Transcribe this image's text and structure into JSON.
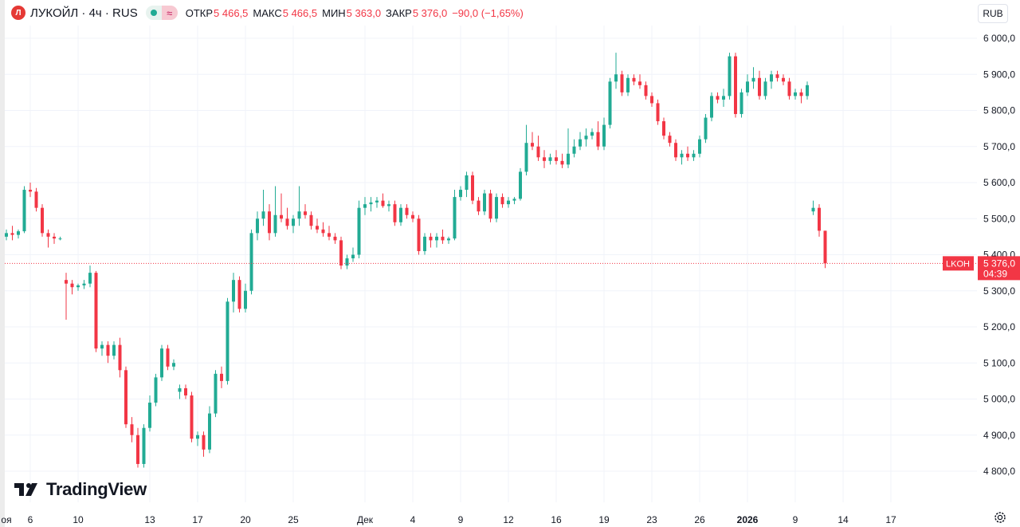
{
  "legend": {
    "symbol_initial": "Л",
    "title": "ЛУКОЙЛ · 4ч · RUS",
    "open_label": "ОТКР",
    "open_value": "5 466,5",
    "high_label": "МАКС",
    "high_value": "5 466,5",
    "low_label": "МИН",
    "low_value": "5 363,0",
    "close_label": "ЗАКР",
    "close_value": "5 376,0",
    "change": "−90,0 (−1,65%)"
  },
  "currency": "RUB",
  "branding": "TradingView",
  "price_tag": {
    "symbol": "LKOH",
    "price": "5 376,0",
    "countdown": "04:39"
  },
  "colors": {
    "up": "#22ab94",
    "down": "#f23645",
    "grid": "#f0f3fa",
    "text": "#131722"
  },
  "chart_data": {
    "type": "candlestick",
    "title": "ЛУКОЙЛ · 4ч · RUS",
    "ylim": [
      4770,
      6040
    ],
    "price_ticks": [
      {
        "value": 6000,
        "label": "6 000,0"
      },
      {
        "value": 5900,
        "label": "5 900,0"
      },
      {
        "value": 5800,
        "label": "5 800,0"
      },
      {
        "value": 5700,
        "label": "5 700,0"
      },
      {
        "value": 5600,
        "label": "5 600,0"
      },
      {
        "value": 5500,
        "label": "5 500,0"
      },
      {
        "value": 5400,
        "label": "5 400,0"
      },
      {
        "value": 5300,
        "label": "5 300,0"
      },
      {
        "value": 5200,
        "label": "5 200,0"
      },
      {
        "value": 5100,
        "label": "5 100,0"
      },
      {
        "value": 5000,
        "label": "5 000,0"
      },
      {
        "value": 4900,
        "label": "4 900,0"
      },
      {
        "value": 4800,
        "label": "4 800,0"
      }
    ],
    "time_ticks": [
      {
        "x": 0,
        "label": "оя"
      },
      {
        "x": 4,
        "label": "6"
      },
      {
        "x": 12,
        "label": "10"
      },
      {
        "x": 24,
        "label": "13"
      },
      {
        "x": 32,
        "label": "17"
      },
      {
        "x": 40,
        "label": "20"
      },
      {
        "x": 48,
        "label": "25"
      },
      {
        "x": 60,
        "label": "Дек"
      },
      {
        "x": 68,
        "label": "4"
      },
      {
        "x": 76,
        "label": "9"
      },
      {
        "x": 84,
        "label": "12"
      },
      {
        "x": 92,
        "label": "16"
      },
      {
        "x": 100,
        "label": "19"
      },
      {
        "x": 108,
        "label": "23"
      },
      {
        "x": 116,
        "label": "26"
      },
      {
        "x": 124,
        "label": "2026"
      },
      {
        "x": 132,
        "label": "9"
      },
      {
        "x": 140,
        "label": "14"
      },
      {
        "x": 148,
        "label": "17"
      }
    ],
    "last_price": 5376.0,
    "series": [
      {
        "name": "LKOH",
        "start_x": 0,
        "ohlc": [
          [
            5450,
            5470,
            5440,
            5460
          ],
          [
            5460,
            5480,
            5440,
            5455
          ],
          [
            5455,
            5470,
            5445,
            5465
          ],
          [
            5465,
            5590,
            5460,
            5580
          ],
          [
            5580,
            5600,
            5560,
            5575
          ],
          [
            5575,
            5585,
            5520,
            5530
          ],
          [
            5530,
            5540,
            5450,
            5460
          ],
          [
            5460,
            5470,
            5420,
            5450
          ],
          [
            5450,
            5460,
            5430,
            5445
          ],
          [
            5445,
            5450,
            5440,
            5445
          ],
          [
            5330,
            5350,
            5220,
            5320
          ],
          [
            5320,
            5330,
            5290,
            5310
          ],
          [
            5310,
            5320,
            5300,
            5315
          ],
          [
            5315,
            5330,
            5305,
            5320
          ],
          [
            5320,
            5370,
            5310,
            5350
          ],
          [
            5350,
            5355,
            5130,
            5140
          ],
          [
            5140,
            5160,
            5120,
            5150
          ],
          [
            5150,
            5160,
            5100,
            5120
          ],
          [
            5120,
            5160,
            5110,
            5150
          ],
          [
            5150,
            5170,
            5060,
            5080
          ],
          [
            5080,
            5090,
            4920,
            4930
          ],
          [
            4930,
            4950,
            4880,
            4900
          ],
          [
            4900,
            4920,
            4810,
            4820
          ],
          [
            4820,
            4930,
            4810,
            4920
          ],
          [
            4920,
            5010,
            4910,
            4990
          ],
          [
            4990,
            5070,
            4980,
            5060
          ],
          [
            5060,
            5150,
            5050,
            5140
          ],
          [
            5140,
            5150,
            5080,
            5090
          ],
          [
            5090,
            5110,
            5080,
            5100
          ],
          [
            5020,
            5040,
            5000,
            5030
          ],
          [
            5030,
            5040,
            5000,
            5010
          ],
          [
            5010,
            5020,
            4880,
            4890
          ],
          [
            4890,
            4910,
            4870,
            4900
          ],
          [
            4900,
            4910,
            4840,
            4860
          ],
          [
            4860,
            4980,
            4850,
            4960
          ],
          [
            4960,
            5080,
            4950,
            5070
          ],
          [
            5070,
            5090,
            5030,
            5050
          ],
          [
            5050,
            5280,
            5040,
            5270
          ],
          [
            5270,
            5350,
            5240,
            5330
          ],
          [
            5330,
            5340,
            5240,
            5250
          ],
          [
            5250,
            5320,
            5240,
            5300
          ],
          [
            5300,
            5470,
            5290,
            5460
          ],
          [
            5460,
            5520,
            5440,
            5500
          ],
          [
            5500,
            5580,
            5480,
            5520
          ],
          [
            5520,
            5540,
            5440,
            5460
          ],
          [
            5460,
            5590,
            5450,
            5510
          ],
          [
            5510,
            5570,
            5490,
            5500
          ],
          [
            5500,
            5530,
            5470,
            5480
          ],
          [
            5480,
            5510,
            5460,
            5500
          ],
          [
            5500,
            5590,
            5480,
            5520
          ],
          [
            5520,
            5540,
            5500,
            5510
          ],
          [
            5510,
            5520,
            5470,
            5480
          ],
          [
            5480,
            5500,
            5460,
            5470
          ],
          [
            5470,
            5490,
            5450,
            5460
          ],
          [
            5460,
            5480,
            5440,
            5450
          ],
          [
            5450,
            5460,
            5430,
            5440
          ],
          [
            5440,
            5450,
            5360,
            5370
          ],
          [
            5370,
            5400,
            5360,
            5390
          ],
          [
            5390,
            5420,
            5380,
            5400
          ],
          [
            5400,
            5550,
            5390,
            5530
          ],
          [
            5530,
            5560,
            5510,
            5540
          ],
          [
            5540,
            5560,
            5520,
            5545
          ],
          [
            5545,
            5560,
            5530,
            5550
          ],
          [
            5550,
            5570,
            5530,
            5535
          ],
          [
            5535,
            5550,
            5520,
            5540
          ],
          [
            5540,
            5550,
            5480,
            5490
          ],
          [
            5490,
            5540,
            5480,
            5530
          ],
          [
            5530,
            5540,
            5500,
            5510
          ],
          [
            5510,
            5520,
            5490,
            5500
          ],
          [
            5500,
            5510,
            5400,
            5410
          ],
          [
            5410,
            5460,
            5400,
            5450
          ],
          [
            5450,
            5460,
            5420,
            5440
          ],
          [
            5440,
            5460,
            5420,
            5450
          ],
          [
            5450,
            5470,
            5430,
            5440
          ],
          [
            5440,
            5450,
            5430,
            5445
          ],
          [
            5445,
            5580,
            5440,
            5560
          ],
          [
            5560,
            5590,
            5550,
            5580
          ],
          [
            5580,
            5630,
            5560,
            5620
          ],
          [
            5620,
            5630,
            5540,
            5550
          ],
          [
            5550,
            5560,
            5510,
            5520
          ],
          [
            5520,
            5580,
            5510,
            5570
          ],
          [
            5570,
            5580,
            5490,
            5500
          ],
          [
            5500,
            5570,
            5490,
            5560
          ],
          [
            5560,
            5570,
            5530,
            5540
          ],
          [
            5540,
            5560,
            5530,
            5550
          ],
          [
            5550,
            5560,
            5540,
            5555
          ],
          [
            5555,
            5640,
            5550,
            5630
          ],
          [
            5630,
            5760,
            5620,
            5710
          ],
          [
            5710,
            5740,
            5690,
            5700
          ],
          [
            5700,
            5730,
            5660,
            5670
          ],
          [
            5670,
            5690,
            5640,
            5660
          ],
          [
            5660,
            5680,
            5650,
            5670
          ],
          [
            5670,
            5690,
            5650,
            5660
          ],
          [
            5660,
            5680,
            5640,
            5650
          ],
          [
            5650,
            5750,
            5640,
            5680
          ],
          [
            5680,
            5720,
            5670,
            5700
          ],
          [
            5700,
            5740,
            5690,
            5720
          ],
          [
            5720,
            5750,
            5700,
            5730
          ],
          [
            5730,
            5750,
            5720,
            5740
          ],
          [
            5740,
            5770,
            5690,
            5700
          ],
          [
            5700,
            5780,
            5690,
            5760
          ],
          [
            5760,
            5890,
            5750,
            5880
          ],
          [
            5880,
            5960,
            5860,
            5900
          ],
          [
            5900,
            5910,
            5840,
            5850
          ],
          [
            5850,
            5900,
            5840,
            5890
          ],
          [
            5890,
            5900,
            5870,
            5880
          ],
          [
            5880,
            5900,
            5860,
            5870
          ],
          [
            5870,
            5880,
            5830,
            5840
          ],
          [
            5840,
            5850,
            5810,
            5820
          ],
          [
            5820,
            5830,
            5760,
            5770
          ],
          [
            5770,
            5780,
            5720,
            5730
          ],
          [
            5730,
            5740,
            5700,
            5710
          ],
          [
            5710,
            5720,
            5660,
            5670
          ],
          [
            5670,
            5690,
            5650,
            5680
          ],
          [
            5680,
            5700,
            5660,
            5670
          ],
          [
            5670,
            5690,
            5660,
            5680
          ],
          [
            5680,
            5730,
            5670,
            5720
          ],
          [
            5720,
            5790,
            5710,
            5780
          ],
          [
            5780,
            5850,
            5770,
            5840
          ],
          [
            5840,
            5850,
            5820,
            5830
          ],
          [
            5830,
            5860,
            5810,
            5840
          ],
          [
            5840,
            5960,
            5830,
            5950
          ],
          [
            5950,
            5960,
            5780,
            5790
          ],
          [
            5790,
            5860,
            5780,
            5850
          ],
          [
            5850,
            5900,
            5840,
            5880
          ],
          [
            5880,
            5920,
            5860,
            5890
          ],
          [
            5890,
            5910,
            5830,
            5840
          ],
          [
            5840,
            5890,
            5830,
            5880
          ],
          [
            5880,
            5910,
            5860,
            5900
          ],
          [
            5900,
            5910,
            5880,
            5890
          ],
          [
            5890,
            5900,
            5870,
            5880
          ],
          [
            5880,
            5890,
            5830,
            5840
          ],
          [
            5840,
            5860,
            5830,
            5850
          ],
          [
            5850,
            5860,
            5820,
            5840
          ],
          [
            5840,
            5880,
            5830,
            5870
          ],
          [
            5520,
            5550,
            5510,
            5530
          ],
          [
            5530,
            5540,
            5450,
            5466.5
          ],
          [
            5466.5,
            5466.5,
            5363,
            5376
          ]
        ]
      }
    ]
  }
}
